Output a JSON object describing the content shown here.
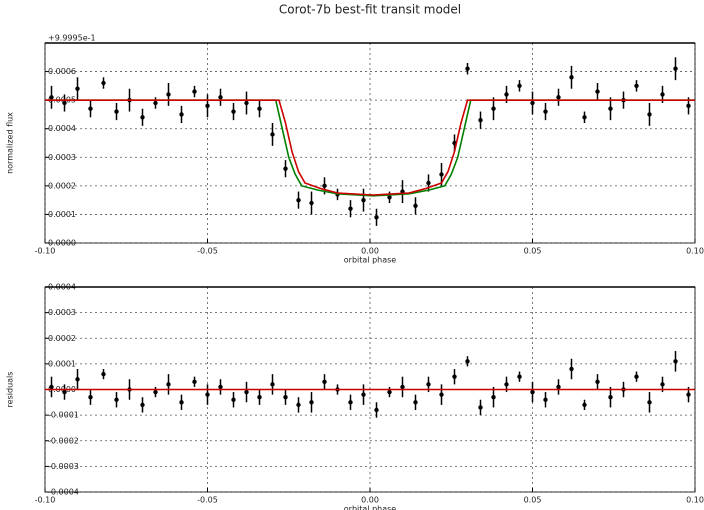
{
  "chart_data": [
    {
      "type": "scatter",
      "title": "Corot-7b best-fit transit model",
      "offset_text": "+9.9995e-1",
      "xlabel": "orbital phase",
      "ylabel": "normalized flux",
      "xlim": [
        -0.1,
        0.1
      ],
      "xticks": [
        {
          "value": -0.1,
          "label": "-0.10"
        },
        {
          "value": -0.05,
          "label": "-0.05"
        },
        {
          "value": 0,
          "label": "0.00"
        },
        {
          "value": 0.05,
          "label": "0.05"
        },
        {
          "value": 0.1,
          "label": "0.10"
        }
      ],
      "ylim": [
        0,
        0.0007
      ],
      "yticks": [
        {
          "value": 0,
          "label": "0.0000"
        },
        0.0001,
        0.0002,
        0.0003,
        0.0004,
        0.0005,
        0.0006
      ],
      "grid": true,
      "points": {
        "color": "#000000",
        "x": [
          -0.098,
          -0.094,
          -0.09,
          -0.086,
          -0.082,
          -0.078,
          -0.074,
          -0.07,
          -0.066,
          -0.062,
          -0.058,
          -0.054,
          -0.05,
          -0.046,
          -0.042,
          -0.038,
          -0.034,
          -0.03,
          -0.026,
          -0.022,
          -0.018,
          -0.014,
          -0.01,
          -0.006,
          -0.002,
          0.002,
          0.006,
          0.01,
          0.014,
          0.018,
          0.022,
          0.026,
          0.03,
          0.034,
          0.038,
          0.042,
          0.046,
          0.05,
          0.054,
          0.058,
          0.062,
          0.066,
          0.07,
          0.074,
          0.078,
          0.082,
          0.086,
          0.09,
          0.094,
          0.098
        ],
        "values": [
          0.00051,
          0.00049,
          0.00054,
          0.00047,
          0.00056,
          0.00046,
          0.0005,
          0.00044,
          0.00049,
          0.00052,
          0.00045,
          0.00053,
          0.00048,
          0.00051,
          0.00046,
          0.00049,
          0.00047,
          0.00038,
          0.00026,
          0.00015,
          0.00014,
          0.0002,
          0.00017,
          0.00012,
          0.00015,
          9e-05,
          0.00016,
          0.00018,
          0.00013,
          0.00021,
          0.00024,
          0.00035,
          0.00061,
          0.00043,
          0.00047,
          0.00052,
          0.00055,
          0.00049,
          0.00046,
          0.00051,
          0.00058,
          0.00044,
          0.00053,
          0.00047,
          0.0005,
          0.00055,
          0.00045,
          0.00052,
          0.00061,
          0.00048
        ],
        "errors": [
          4e-05,
          3e-05,
          4e-05,
          3e-05,
          2e-05,
          3e-05,
          4e-05,
          3e-05,
          2e-05,
          4e-05,
          3e-05,
          2e-05,
          4e-05,
          3e-05,
          3e-05,
          4e-05,
          3e-05,
          4e-05,
          3e-05,
          3e-05,
          4e-05,
          3e-05,
          2e-05,
          3e-05,
          4e-05,
          3e-05,
          2e-05,
          4e-05,
          3e-05,
          3e-05,
          4e-05,
          3e-05,
          2e-05,
          3e-05,
          4e-05,
          3e-05,
          2e-05,
          4e-05,
          3e-05,
          3e-05,
          4e-05,
          2e-05,
          3e-05,
          4e-05,
          3e-05,
          2e-05,
          4e-05,
          3e-05,
          4e-05,
          3e-05
        ]
      },
      "lines": [
        {
          "color": "#008000",
          "x": [
            -0.1,
            -0.029,
            -0.027,
            -0.025,
            -0.023,
            -0.021,
            -0.016,
            -0.01,
            0.001,
            0.012,
            0.018,
            0.023,
            0.025,
            0.027,
            0.029,
            0.031,
            0.1
          ],
          "values": [
            0.0005,
            0.0005,
            0.0004,
            0.0003,
            0.00024,
            0.0002,
            0.000185,
            0.000172,
            0.000165,
            0.000172,
            0.000185,
            0.0002,
            0.00024,
            0.0003,
            0.0004,
            0.0005,
            0.0005
          ]
        },
        {
          "color": "#cc0000",
          "x": [
            -0.1,
            -0.028,
            -0.026,
            -0.024,
            -0.022,
            -0.02,
            -0.015,
            -0.01,
            0.001,
            0.012,
            0.017,
            0.022,
            0.024,
            0.026,
            0.028,
            0.03,
            0.1
          ],
          "values": [
            0.0005,
            0.0005,
            0.00042,
            0.00032,
            0.00025,
            0.00021,
            0.00019,
            0.000175,
            0.000168,
            0.000175,
            0.00019,
            0.00021,
            0.00025,
            0.00032,
            0.00042,
            0.0005,
            0.0005
          ]
        }
      ]
    },
    {
      "type": "scatter",
      "xlabel": "orbital phase",
      "ylabel": "residuals",
      "xlim": [
        -0.1,
        0.1
      ],
      "xticks": [
        {
          "value": -0.1,
          "label": "-0.10"
        },
        {
          "value": -0.05,
          "label": "-0.05"
        },
        {
          "value": 0,
          "label": "0.00"
        },
        {
          "value": 0.05,
          "label": "0.05"
        },
        {
          "value": 0.1,
          "label": "0.10"
        }
      ],
      "ylim": [
        -0.0004,
        0.0004
      ],
      "yticks": [
        -0.0004,
        -0.0003,
        -0.0002,
        -0.0001,
        {
          "value": 0,
          "label": "0.0000"
        },
        0.0001,
        0.0002,
        0.0003,
        0.0004
      ],
      "grid": true,
      "points": {
        "color": "#000000",
        "x": [
          -0.098,
          -0.094,
          -0.09,
          -0.086,
          -0.082,
          -0.078,
          -0.074,
          -0.07,
          -0.066,
          -0.062,
          -0.058,
          -0.054,
          -0.05,
          -0.046,
          -0.042,
          -0.038,
          -0.034,
          -0.03,
          -0.026,
          -0.022,
          -0.018,
          -0.014,
          -0.01,
          -0.006,
          -0.002,
          0.002,
          0.006,
          0.01,
          0.014,
          0.018,
          0.022,
          0.026,
          0.03,
          0.034,
          0.038,
          0.042,
          0.046,
          0.05,
          0.054,
          0.058,
          0.062,
          0.066,
          0.07,
          0.074,
          0.078,
          0.082,
          0.086,
          0.09,
          0.094,
          0.098
        ],
        "values": [
          1e-05,
          -1e-05,
          4e-05,
          -3e-05,
          6e-05,
          -4e-05,
          0,
          -6e-05,
          -1e-05,
          2e-05,
          -5e-05,
          3e-05,
          -2e-05,
          1e-05,
          -4e-05,
          -1e-05,
          -3e-05,
          2e-05,
          -3e-05,
          -6e-05,
          -5e-05,
          3e-05,
          0,
          -5e-05,
          -2e-05,
          -8e-05,
          -1e-05,
          1e-05,
          -5e-05,
          2e-05,
          -2e-05,
          5e-05,
          0.00011,
          -7e-05,
          -3e-05,
          2e-05,
          5e-05,
          -1e-05,
          -4e-05,
          1e-05,
          8e-05,
          -6e-05,
          3e-05,
          -3e-05,
          0,
          5e-05,
          -5e-05,
          2e-05,
          0.00011,
          -2e-05
        ],
        "errors": [
          4e-05,
          3e-05,
          4e-05,
          3e-05,
          2e-05,
          3e-05,
          4e-05,
          3e-05,
          2e-05,
          4e-05,
          3e-05,
          2e-05,
          4e-05,
          3e-05,
          3e-05,
          4e-05,
          3e-05,
          4e-05,
          3e-05,
          3e-05,
          4e-05,
          3e-05,
          2e-05,
          3e-05,
          4e-05,
          3e-05,
          2e-05,
          4e-05,
          3e-05,
          3e-05,
          4e-05,
          3e-05,
          2e-05,
          3e-05,
          4e-05,
          3e-05,
          2e-05,
          4e-05,
          3e-05,
          3e-05,
          4e-05,
          2e-05,
          3e-05,
          4e-05,
          3e-05,
          2e-05,
          4e-05,
          3e-05,
          4e-05,
          3e-05
        ]
      },
      "lines": [
        {
          "color": "#cc0000",
          "x": [
            -0.1,
            0.1
          ],
          "values": [
            0,
            0
          ]
        }
      ]
    }
  ]
}
